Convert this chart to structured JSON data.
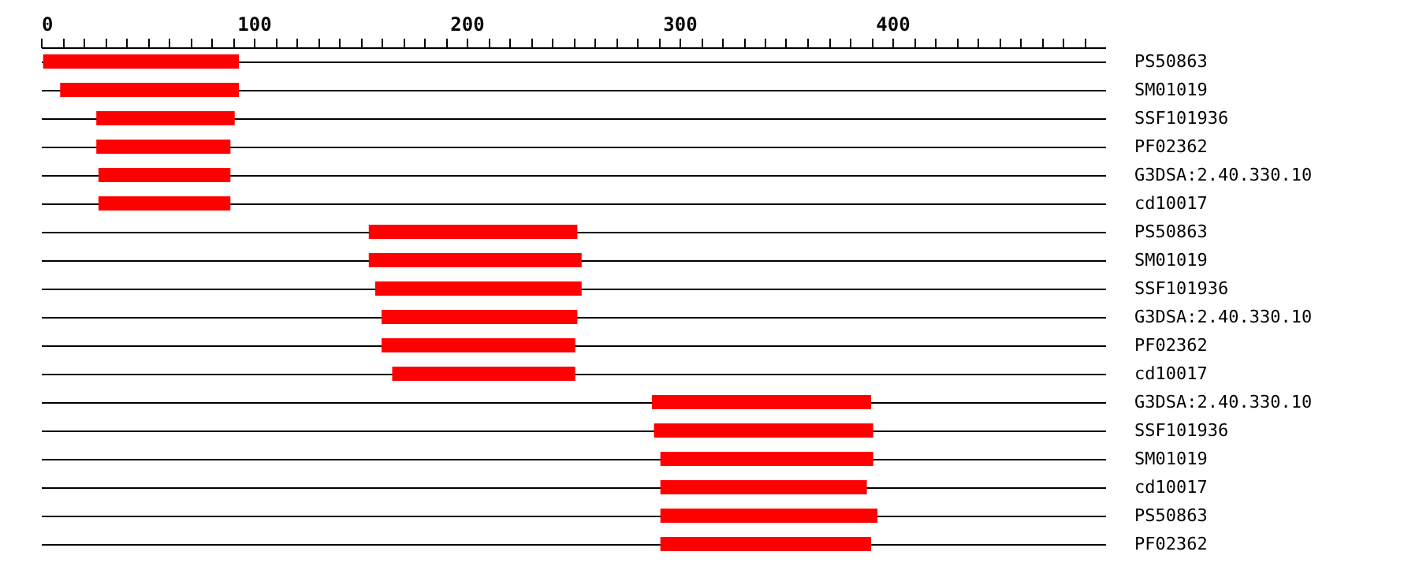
{
  "chart_data": {
    "type": "bar",
    "orientation": "horizontal",
    "color": "#ff0000",
    "grid": "y",
    "categories": [
      "PS50863",
      "SM01019",
      "SSF101936",
      "PF02362",
      "G3DSA:2.40.330.10",
      "cd10017",
      "PS50863",
      "SM01019",
      "SSF101936",
      "G3DSA:2.40.330.10",
      "PF02362",
      "cd10017",
      "G3DSA:2.40.330.10",
      "SSF101936",
      "SM01019",
      "cd10017",
      "PS50863",
      "PF02362"
    ],
    "base": [
      1,
      9,
      26,
      26,
      27,
      27,
      154,
      154,
      157,
      160,
      160,
      165,
      287,
      288,
      291,
      291,
      291,
      291
    ],
    "values": [
      92,
      84,
      65,
      63,
      62,
      62,
      98,
      100,
      97,
      92,
      91,
      86,
      103,
      103,
      100,
      97,
      102,
      99
    ],
    "xlim": [
      0,
      500
    ],
    "xticks": [
      0,
      {
        "value": 10,
        "label": null
      },
      {
        "value": 20,
        "label": null
      },
      {
        "value": 30,
        "label": null
      },
      {
        "value": 40,
        "label": null
      },
      {
        "value": 50,
        "label": null
      },
      {
        "value": 60,
        "label": null
      },
      {
        "value": 70,
        "label": null
      },
      {
        "value": 80,
        "label": null
      },
      {
        "value": 90,
        "label": null
      },
      100,
      {
        "value": 110,
        "label": null
      },
      {
        "value": 120,
        "label": null
      },
      {
        "value": 130,
        "label": null
      },
      {
        "value": 140,
        "label": null
      },
      {
        "value": 150,
        "label": null
      },
      {
        "value": 160,
        "label": null
      },
      {
        "value": 170,
        "label": null
      },
      {
        "value": 180,
        "label": null
      },
      {
        "value": 190,
        "label": null
      },
      200,
      {
        "value": 210,
        "label": null
      },
      {
        "value": 220,
        "label": null
      },
      {
        "value": 230,
        "label": null
      },
      {
        "value": 240,
        "label": null
      },
      {
        "value": 250,
        "label": null
      },
      {
        "value": 260,
        "label": null
      },
      {
        "value": 270,
        "label": null
      },
      {
        "value": 280,
        "label": null
      },
      {
        "value": 290,
        "label": null
      },
      300,
      {
        "value": 310,
        "label": null
      },
      {
        "value": 320,
        "label": null
      },
      {
        "value": 330,
        "label": null
      },
      {
        "value": 340,
        "label": null
      },
      {
        "value": 350,
        "label": null
      },
      {
        "value": 360,
        "label": null
      },
      {
        "value": 370,
        "label": null
      },
      {
        "value": 380,
        "label": null
      },
      {
        "value": 390,
        "label": null
      },
      400,
      {
        "value": 410,
        "label": null
      },
      {
        "value": 420,
        "label": null
      },
      {
        "value": 430,
        "label": null
      },
      {
        "value": 440,
        "label": null
      },
      {
        "value": 450,
        "label": null
      },
      {
        "value": 460,
        "label": null
      },
      {
        "value": 470,
        "label": null
      },
      {
        "value": 480,
        "label": null
      },
      {
        "value": 490,
        "label": null
      }
    ]
  }
}
